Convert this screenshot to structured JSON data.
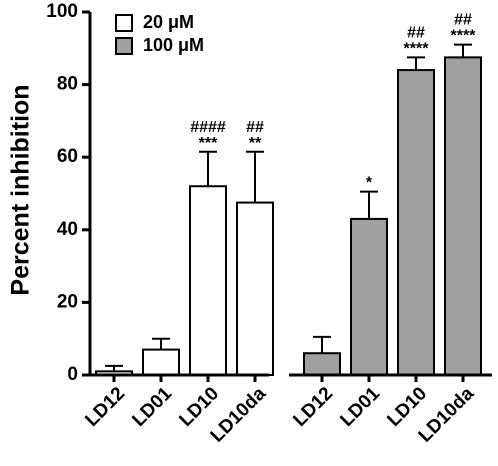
{
  "chart_data": {
    "type": "bar",
    "ylabel": "Percent inhibition",
    "ylim": [
      0,
      100
    ],
    "yticks": [
      0,
      20,
      40,
      60,
      80,
      100
    ],
    "legend_placement": "top-left",
    "series": [
      {
        "name": "20 μM",
        "color": "#ffffff",
        "categories": [
          "LD12",
          "LD01",
          "LD10",
          "LD10da"
        ],
        "values": [
          1,
          7,
          52,
          47.5
        ],
        "errors": [
          1.5,
          3,
          9.5,
          14
        ],
        "annotations_top": [
          "",
          "",
          "####",
          "##"
        ],
        "annotations_bottom": [
          "",
          "",
          "***",
          "**"
        ]
      },
      {
        "name": "100 μM",
        "color": "#a0a0a0",
        "categories": [
          "LD12",
          "LD01",
          "LD10",
          "LD10da"
        ],
        "values": [
          6,
          43,
          84,
          87.5
        ],
        "errors": [
          4.5,
          7.5,
          3.5,
          3.5
        ],
        "annotations_top": [
          "",
          "",
          "##",
          "##"
        ],
        "annotations_bottom": [
          "",
          "*",
          "****",
          "****"
        ]
      }
    ]
  }
}
